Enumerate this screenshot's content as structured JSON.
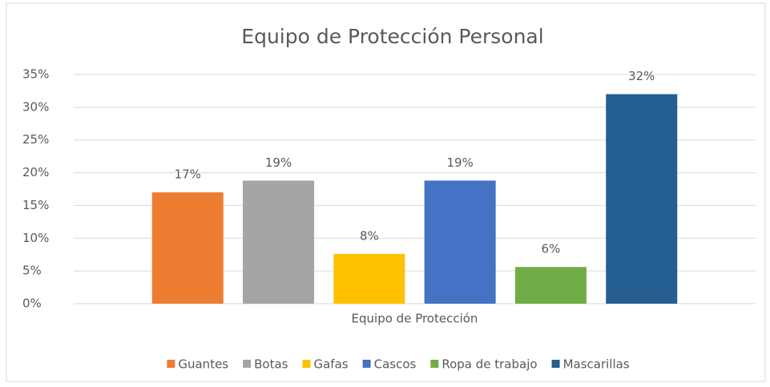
{
  "chart_data": {
    "type": "bar",
    "title": "Equipo de Protección Personal",
    "categories": [
      "Equipo de Protección"
    ],
    "series": [
      {
        "name": "Guantes",
        "color": "#ed7d31",
        "values": [
          17
        ],
        "value_labels": [
          "17%"
        ]
      },
      {
        "name": "Botas",
        "color": "#a5a5a5",
        "values": [
          18.8
        ],
        "value_labels": [
          "19%"
        ]
      },
      {
        "name": "Gafas",
        "color": "#ffc000",
        "values": [
          7.6
        ],
        "value_labels": [
          "8%"
        ]
      },
      {
        "name": "Cascos",
        "color": "#4472c4",
        "values": [
          18.8
        ],
        "value_labels": [
          "19%"
        ]
      },
      {
        "name": "Ropa de trabajo",
        "color": "#70ad47",
        "values": [
          5.6
        ],
        "value_labels": [
          "6%"
        ]
      },
      {
        "name": "Mascarillas",
        "color": "#255e91",
        "values": [
          32
        ],
        "value_labels": [
          "32%"
        ]
      }
    ],
    "ylim": [
      0,
      35
    ],
    "yticks": [
      {
        "value": 0,
        "label": "0%"
      },
      {
        "value": 5,
        "label": "5%"
      },
      {
        "value": 10,
        "label": "10%"
      },
      {
        "value": 15,
        "label": "15%"
      },
      {
        "value": 20,
        "label": "20%"
      },
      {
        "value": 25,
        "label": "25%"
      },
      {
        "value": 30,
        "label": "30%"
      },
      {
        "value": 35,
        "label": "35%"
      }
    ],
    "grid": true,
    "legend": "bottom"
  }
}
